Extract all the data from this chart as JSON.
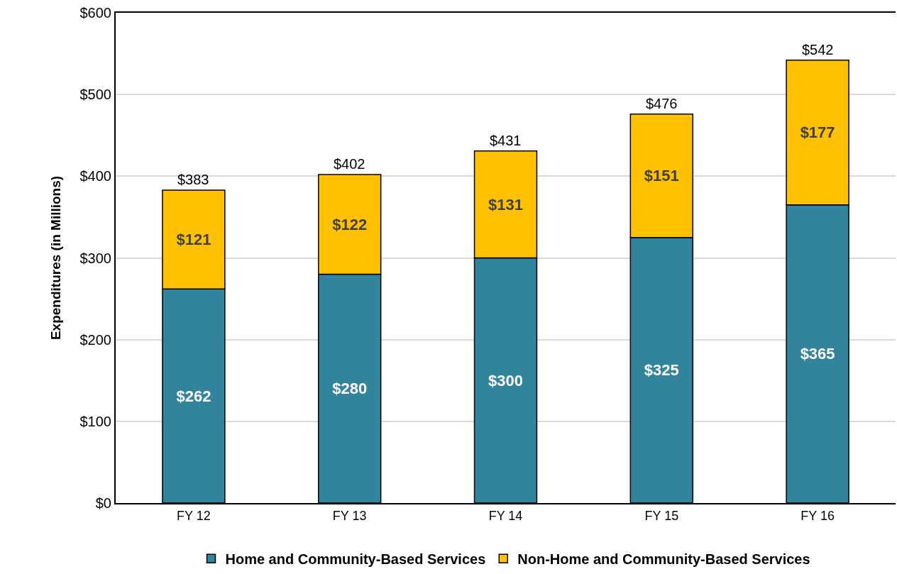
{
  "chart_data": {
    "type": "bar",
    "stacked": true,
    "ylabel": "Expenditures (in Millions)",
    "categories": [
      "FY 12",
      "FY 13",
      "FY 14",
      "FY 15",
      "FY 16"
    ],
    "series": [
      {
        "name": "Home and Community-Based Services",
        "color": "#31849b",
        "values": [
          262,
          280,
          300,
          325,
          365
        ],
        "value_labels": [
          "$262",
          "$280",
          "$300",
          "$325",
          "$365"
        ]
      },
      {
        "name": "Non-Home and Community-Based Services",
        "color": "#ffc000",
        "values": [
          121,
          122,
          131,
          151,
          177
        ],
        "value_labels": [
          "$121",
          "$122",
          "$131",
          "$151",
          "$177"
        ]
      }
    ],
    "totals": [
      "$383",
      "$402",
      "$431",
      "$476",
      "$542"
    ],
    "ylim": [
      0,
      600
    ],
    "yticks": [
      {
        "value": 0,
        "label": "$0"
      },
      {
        "value": 100,
        "label": "$100"
      },
      {
        "value": 200,
        "label": "$200"
      },
      {
        "value": 300,
        "label": "$300"
      },
      {
        "value": 400,
        "label": "$400"
      },
      {
        "value": 500,
        "label": "$500"
      },
      {
        "value": 600,
        "label": "$600"
      }
    ],
    "grid": "y",
    "legend": "bottom"
  }
}
